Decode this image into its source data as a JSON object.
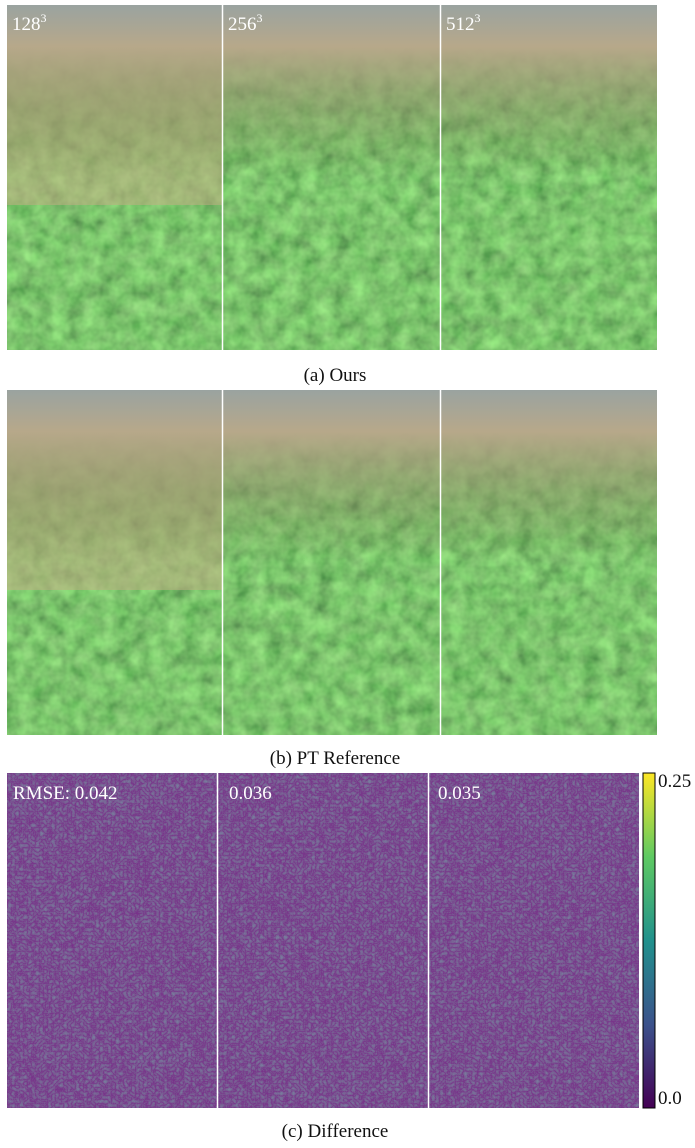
{
  "rows": [
    {
      "caption": "(a) Ours",
      "labels": [
        {
          "base": "128",
          "exp": "3"
        },
        {
          "base": "256",
          "exp": "3"
        },
        {
          "base": "512",
          "exp": "3"
        }
      ]
    },
    {
      "caption": "(b) PT Reference"
    },
    {
      "caption": "(c) Difference",
      "labels": [
        "RMSE: 0.042",
        "0.036",
        "0.035"
      ]
    }
  ],
  "colorbar": {
    "max_label": "0.25",
    "min_label": "0.0"
  }
}
